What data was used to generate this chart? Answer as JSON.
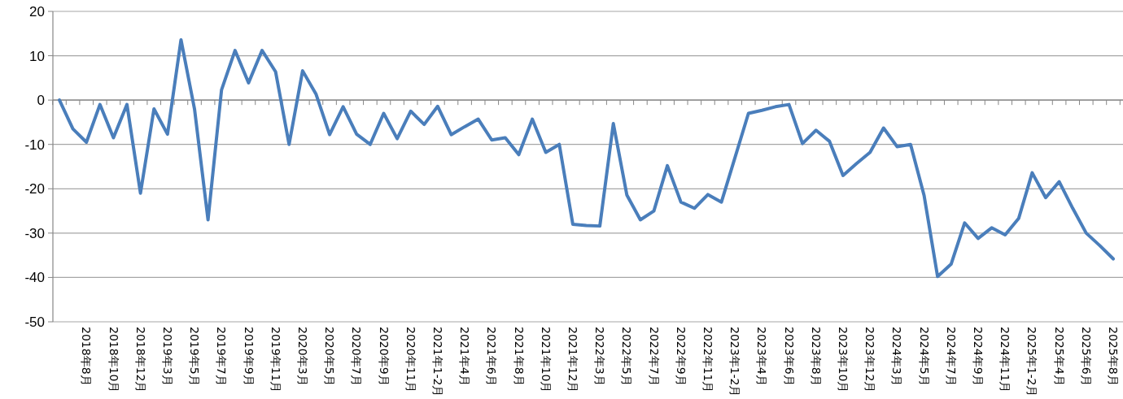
{
  "chart_data": {
    "type": "line",
    "categories": [
      null,
      null,
      "2018年8月",
      null,
      "2018年10月",
      null,
      "2018年12月",
      null,
      "2019年3月",
      null,
      "2019年5月",
      null,
      "2019年7月",
      null,
      "2019年9月",
      null,
      "2019年11月",
      null,
      "2020年3月",
      null,
      "2020年5月",
      null,
      "2020年7月",
      null,
      "2020年9月",
      null,
      "2020年11月",
      null,
      "2021年1-2月",
      null,
      "2021年4月",
      null,
      "2021年6月",
      null,
      "2021年8月",
      null,
      "2021年10月",
      null,
      "2021年12月",
      null,
      "2022年3月",
      null,
      "2022年5月",
      null,
      "2022年7月",
      null,
      "2022年9月",
      null,
      "2022年11月",
      null,
      "2023年1-2月",
      null,
      "2023年4月",
      null,
      "2023年6月",
      null,
      "2023年8月",
      null,
      "2023年10月",
      null,
      "2023年12月",
      null,
      "2024年3月",
      null,
      "2024年5月",
      null,
      "2024年7月",
      null,
      "2024年9月",
      null,
      "2024年11月",
      null,
      "2025年1-2月",
      null,
      "2025年4月",
      null,
      "2025年6月",
      null,
      "2025年8月"
    ],
    "values": [
      0,
      -6.5,
      -9.5,
      -1,
      -8.5,
      -1,
      -21,
      -2,
      -7.7,
      13.6,
      -2,
      -27,
      2.3,
      11.2,
      3.9,
      11.2,
      6.4,
      -10,
      6.6,
      1.3,
      -7.8,
      -1.5,
      -7.7,
      -10,
      -3,
      -8.7,
      -2.5,
      -5.5,
      -1.4,
      -7.8,
      -6,
      -4.3,
      -9,
      -8.5,
      -12.3,
      -4.3,
      -11.8,
      -10,
      -28,
      -28.3,
      -28.4,
      -5.3,
      -21.4,
      -27,
      -25,
      -14.8,
      -23,
      -24.4,
      -21.3,
      -23,
      -13,
      -3,
      -2.3,
      -1.5,
      -1,
      -9.8,
      -6.8,
      -9.3,
      -17,
      -14.3,
      -11.8,
      -6.3,
      -10.5,
      -10,
      -21.5,
      -39.8,
      -37,
      -27.7,
      -31.2,
      -28.8,
      -30.4,
      -26.7,
      -16.4,
      -22,
      -18.4,
      -24.4,
      -30,
      -32.8,
      -35.8
    ],
    "color": "#4a7ebb",
    "ylim": [
      -50,
      20
    ],
    "yticks": [
      -50,
      -40,
      -30,
      -20,
      -10,
      0,
      10,
      20
    ],
    "grid": "y"
  }
}
